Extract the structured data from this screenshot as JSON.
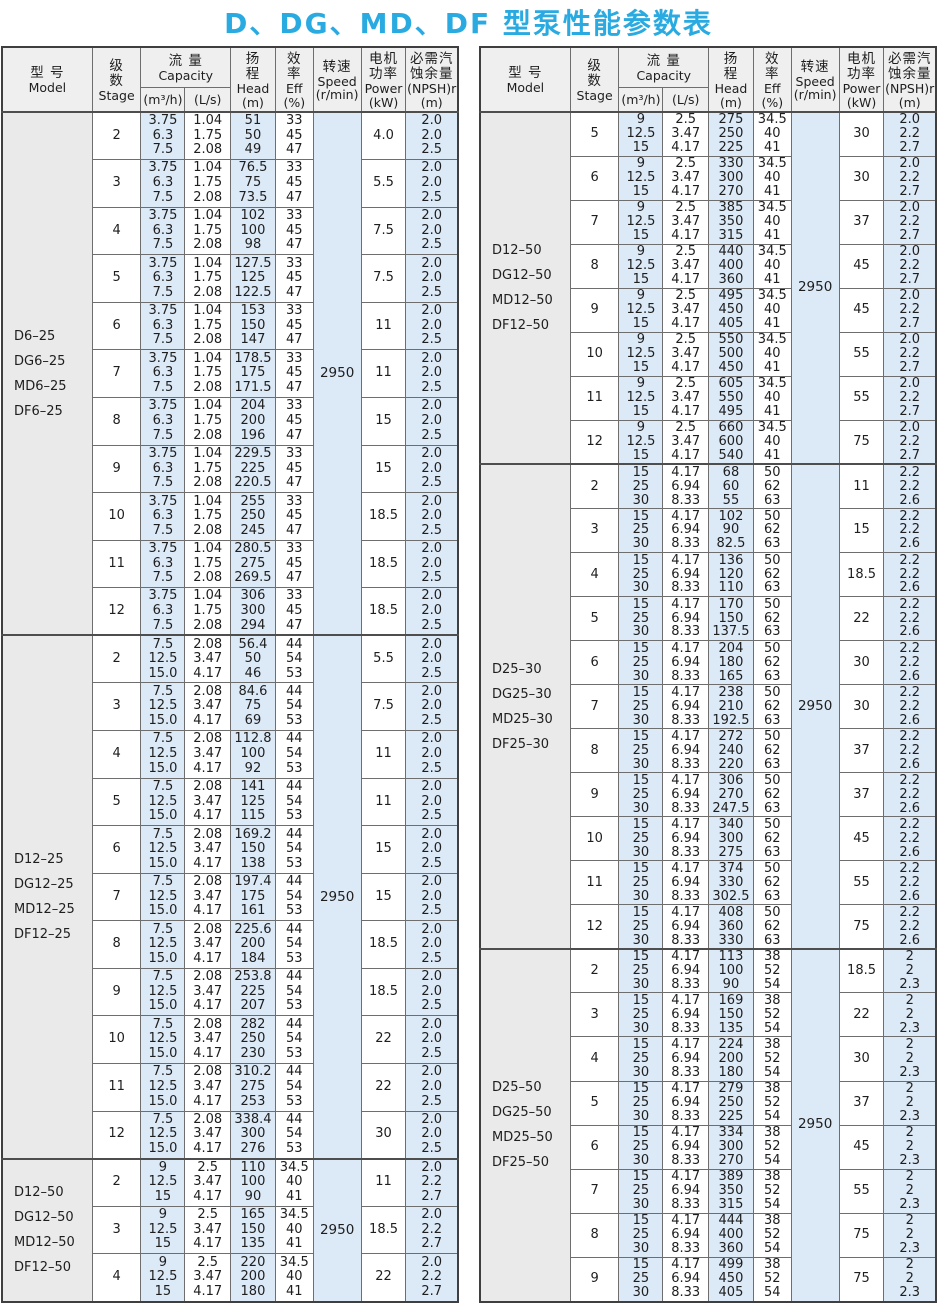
{
  "title": "D、DG、MD、DF 型泵性能参数表",
  "colors": {
    "title_accent": "#29aae1",
    "cell_blue": "#dce9f7",
    "cell_gray": "#eaeaea",
    "header_gray": "#efefef",
    "border": "#6e6e6e"
  },
  "header": {
    "model": {
      "cn": "型  号",
      "en": "Model"
    },
    "stage": {
      "cn1": "级",
      "cn2": "数",
      "en": "Stage"
    },
    "capacity": {
      "cn": "流  量",
      "en": "Capacity",
      "unit1": "(m³/h)",
      "unit2": "(L/s)"
    },
    "head": {
      "cn1": "扬",
      "cn2": "程",
      "en": "Head",
      "unit": "(m)"
    },
    "eff": {
      "cn1": "效",
      "cn2": "率",
      "en": "Eff",
      "unit": "(%)"
    },
    "speed": {
      "cn": "转速",
      "en": "Speed",
      "unit": "(r/min)"
    },
    "power": {
      "cn1": "电机",
      "cn2": "功率",
      "en": "Power",
      "unit": "(kW)"
    },
    "npsh": {
      "cn1": "必需汽",
      "cn2": "蚀余量",
      "en": "(NPSH)r",
      "unit": "(m)"
    }
  },
  "tables": [
    {
      "groups": [
        {
          "models": [
            "D6–25",
            "DG6–25",
            "MD6–25",
            "DF6–25"
          ],
          "capacity_m3h": [
            "3.75",
            "6.3",
            "7.5"
          ],
          "capacity_ls": [
            "1.04",
            "1.75",
            "2.08"
          ],
          "eff": [
            "33",
            "45",
            "47"
          ],
          "speed": "2950",
          "npsh": [
            "2.0",
            "2.0",
            "2.5"
          ],
          "rows": [
            {
              "stage": "2",
              "head": [
                "51",
                "50",
                "49"
              ],
              "power": "4.0"
            },
            {
              "stage": "3",
              "head": [
                "76.5",
                "75",
                "73.5"
              ],
              "power": "5.5"
            },
            {
              "stage": "4",
              "head": [
                "102",
                "100",
                "98"
              ],
              "power": "7.5"
            },
            {
              "stage": "5",
              "head": [
                "127.5",
                "125",
                "122.5"
              ],
              "power": "7.5"
            },
            {
              "stage": "6",
              "head": [
                "153",
                "150",
                "147"
              ],
              "power": "11"
            },
            {
              "stage": "7",
              "head": [
                "178.5",
                "175",
                "171.5"
              ],
              "power": "11"
            },
            {
              "stage": "8",
              "head": [
                "204",
                "200",
                "196"
              ],
              "power": "15"
            },
            {
              "stage": "9",
              "head": [
                "229.5",
                "225",
                "220.5"
              ],
              "power": "15"
            },
            {
              "stage": "10",
              "head": [
                "255",
                "250",
                "245"
              ],
              "power": "18.5"
            },
            {
              "stage": "11",
              "head": [
                "280.5",
                "275",
                "269.5"
              ],
              "power": "18.5"
            },
            {
              "stage": "12",
              "head": [
                "306",
                "300",
                "294"
              ],
              "power": "18.5"
            }
          ]
        },
        {
          "models": [
            "D12–25",
            "DG12–25",
            "MD12–25",
            "DF12–25"
          ],
          "capacity_m3h": [
            "7.5",
            "12.5",
            "15.0"
          ],
          "capacity_ls": [
            "2.08",
            "3.47",
            "4.17"
          ],
          "eff": [
            "44",
            "54",
            "53"
          ],
          "speed": "2950",
          "npsh": [
            "2.0",
            "2.0",
            "2.5"
          ],
          "rows": [
            {
              "stage": "2",
              "head": [
                "56.4",
                "50",
                "46"
              ],
              "power": "5.5"
            },
            {
              "stage": "3",
              "head": [
                "84.6",
                "75",
                "69"
              ],
              "power": "7.5"
            },
            {
              "stage": "4",
              "head": [
                "112.8",
                "100",
                "92"
              ],
              "power": "11"
            },
            {
              "stage": "5",
              "head": [
                "141",
                "125",
                "115"
              ],
              "power": "11"
            },
            {
              "stage": "6",
              "head": [
                "169.2",
                "150",
                "138"
              ],
              "power": "15"
            },
            {
              "stage": "7",
              "head": [
                "197.4",
                "175",
                "161"
              ],
              "power": "15"
            },
            {
              "stage": "8",
              "head": [
                "225.6",
                "200",
                "184"
              ],
              "power": "18.5"
            },
            {
              "stage": "9",
              "head": [
                "253.8",
                "225",
                "207"
              ],
              "power": "18.5"
            },
            {
              "stage": "10",
              "head": [
                "282",
                "250",
                "230"
              ],
              "power": "22"
            },
            {
              "stage": "11",
              "head": [
                "310.2",
                "275",
                "253"
              ],
              "power": "22"
            },
            {
              "stage": "12",
              "head": [
                "338.4",
                "300",
                "276"
              ],
              "power": "30"
            }
          ]
        },
        {
          "models": [
            "D12–50",
            "DG12–50",
            "MD12–50",
            "DF12–50"
          ],
          "capacity_m3h": [
            "9",
            "12.5",
            "15"
          ],
          "capacity_ls": [
            "2.5",
            "3.47",
            "4.17"
          ],
          "eff": [
            "34.5",
            "40",
            "41"
          ],
          "speed": "2950",
          "npsh": [
            "2.0",
            "2.2",
            "2.7"
          ],
          "rows": [
            {
              "stage": "2",
              "head": [
                "110",
                "100",
                "90"
              ],
              "power": "11"
            },
            {
              "stage": "3",
              "head": [
                "165",
                "150",
                "135"
              ],
              "power": "18.5"
            },
            {
              "stage": "4",
              "head": [
                "220",
                "200",
                "180"
              ],
              "power": "22"
            }
          ]
        }
      ]
    },
    {
      "groups": [
        {
          "models": [
            "D12–50",
            "DG12–50",
            "MD12–50",
            "DF12–50"
          ],
          "capacity_m3h": [
            "9",
            "12.5",
            "15"
          ],
          "capacity_ls": [
            "2.5",
            "3.47",
            "4.17"
          ],
          "eff": [
            "34.5",
            "40",
            "41"
          ],
          "speed": "2950",
          "npsh": [
            "2.0",
            "2.2",
            "2.7"
          ],
          "rows": [
            {
              "stage": "5",
              "head": [
                "275",
                "250",
                "225"
              ],
              "power": "30"
            },
            {
              "stage": "6",
              "head": [
                "330",
                "300",
                "270"
              ],
              "power": "30"
            },
            {
              "stage": "7",
              "head": [
                "385",
                "350",
                "315"
              ],
              "power": "37"
            },
            {
              "stage": "8",
              "head": [
                "440",
                "400",
                "360"
              ],
              "power": "45"
            },
            {
              "stage": "9",
              "head": [
                "495",
                "450",
                "405"
              ],
              "power": "45"
            },
            {
              "stage": "10",
              "head": [
                "550",
                "500",
                "450"
              ],
              "power": "55"
            },
            {
              "stage": "11",
              "head": [
                "605",
                "550",
                "495"
              ],
              "power": "55"
            },
            {
              "stage": "12",
              "head": [
                "660",
                "600",
                "540"
              ],
              "power": "75"
            }
          ]
        },
        {
          "models": [
            "D25–30",
            "DG25–30",
            "MD25–30",
            "DF25–30"
          ],
          "capacity_m3h": [
            "15",
            "25",
            "30"
          ],
          "capacity_ls": [
            "4.17",
            "6.94",
            "8.33"
          ],
          "eff": [
            "50",
            "62",
            "63"
          ],
          "speed": "2950",
          "npsh": [
            "2.2",
            "2.2",
            "2.6"
          ],
          "rows": [
            {
              "stage": "2",
              "head": [
                "68",
                "60",
                "55"
              ],
              "power": "11"
            },
            {
              "stage": "3",
              "head": [
                "102",
                "90",
                "82.5"
              ],
              "power": "15"
            },
            {
              "stage": "4",
              "head": [
                "136",
                "120",
                "110"
              ],
              "power": "18.5"
            },
            {
              "stage": "5",
              "head": [
                "170",
                "150",
                "137.5"
              ],
              "power": "22"
            },
            {
              "stage": "6",
              "head": [
                "204",
                "180",
                "165"
              ],
              "power": "30"
            },
            {
              "stage": "7",
              "head": [
                "238",
                "210",
                "192.5"
              ],
              "power": "30"
            },
            {
              "stage": "8",
              "head": [
                "272",
                "240",
                "220"
              ],
              "power": "37"
            },
            {
              "stage": "9",
              "head": [
                "306",
                "270",
                "247.5"
              ],
              "power": "37"
            },
            {
              "stage": "10",
              "head": [
                "340",
                "300",
                "275"
              ],
              "power": "45"
            },
            {
              "stage": "11",
              "head": [
                "374",
                "330",
                "302.5"
              ],
              "power": "55"
            },
            {
              "stage": "12",
              "head": [
                "408",
                "360",
                "330"
              ],
              "power": "75"
            }
          ]
        },
        {
          "models": [
            "D25–50",
            "DG25–50",
            "MD25–50",
            "DF25–50"
          ],
          "capacity_m3h": [
            "15",
            "25",
            "30"
          ],
          "capacity_ls": [
            "4.17",
            "6.94",
            "8.33"
          ],
          "eff": [
            "38",
            "52",
            "54"
          ],
          "speed": "2950",
          "npsh": [
            "2",
            "2",
            "2.3"
          ],
          "rows": [
            {
              "stage": "2",
              "head": [
                "113",
                "100",
                "90"
              ],
              "power": "18.5"
            },
            {
              "stage": "3",
              "head": [
                "169",
                "150",
                "135"
              ],
              "power": "22"
            },
            {
              "stage": "4",
              "head": [
                "224",
                "200",
                "180"
              ],
              "power": "30"
            },
            {
              "stage": "5",
              "head": [
                "279",
                "250",
                "225"
              ],
              "power": "37"
            },
            {
              "stage": "6",
              "head": [
                "334",
                "300",
                "270"
              ],
              "power": "45"
            },
            {
              "stage": "7",
              "head": [
                "389",
                "350",
                "315"
              ],
              "power": "55"
            },
            {
              "stage": "8",
              "head": [
                "444",
                "400",
                "360"
              ],
              "power": "75"
            },
            {
              "stage": "9",
              "head": [
                "499",
                "450",
                "405"
              ],
              "power": "75"
            }
          ]
        }
      ]
    }
  ]
}
